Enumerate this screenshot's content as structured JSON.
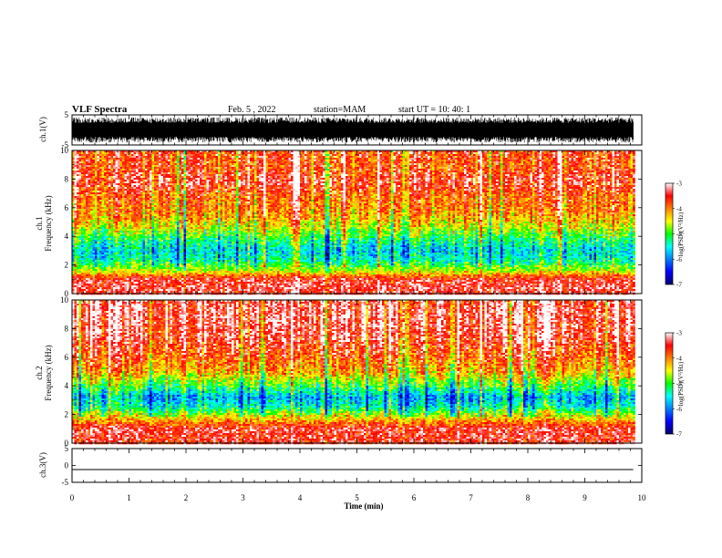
{
  "chart_data": {
    "type": "heatmap",
    "title": "VLF Spectra",
    "date": "Feb. 5  , 2022",
    "station": "station=MAM",
    "start_time": "start  UT  =   10: 40: 1",
    "xlabel": "Time  (min)",
    "x_ticks": [
      "0",
      "1",
      "2",
      "3",
      "4",
      "5",
      "6",
      "7",
      "8",
      "9",
      "10"
    ],
    "xlim": [
      0,
      10
    ],
    "data_end_min": 9.85,
    "panels": [
      {
        "kind": "waveform",
        "ylabel": "ch.1(V)",
        "ylim": [
          -5,
          5
        ],
        "y_ticks": [
          "5",
          "-5"
        ],
        "amplitude_range": [
          -4.2,
          4.2
        ]
      },
      {
        "kind": "spectrogram",
        "ch": "ch.1",
        "ylabel": "Frequency  (kHz)",
        "ylim": [
          0,
          10
        ],
        "y_ticks": [
          "0",
          "2",
          "4",
          "6",
          "8",
          "10"
        ],
        "bands": [
          {
            "f": 0.3,
            "level": -3.4
          },
          {
            "f": 1.0,
            "level": -3.5
          },
          {
            "f": 1.6,
            "level": -4.6
          },
          {
            "f": 2.3,
            "level": -5.4
          },
          {
            "f": 3.0,
            "level": -5.7
          },
          {
            "f": 3.8,
            "level": -5.2
          },
          {
            "f": 4.6,
            "level": -4.6
          },
          {
            "f": 5.6,
            "level": -4.1
          },
          {
            "f": 6.8,
            "level": -3.9
          },
          {
            "f": 7.8,
            "level": -3.5
          },
          {
            "f": 8.8,
            "level": -3.8
          },
          {
            "f": 10.0,
            "level": -3.7
          }
        ]
      },
      {
        "kind": "spectrogram",
        "ch": "ch.2",
        "ylabel": "Frequency  (kHz)",
        "ylim": [
          0,
          10
        ],
        "y_ticks": [
          "0",
          "2",
          "4",
          "6",
          "8",
          "10"
        ],
        "bands": [
          {
            "f": 0.3,
            "level": -3.5
          },
          {
            "f": 1.0,
            "level": -3.4
          },
          {
            "f": 1.8,
            "level": -4.4
          },
          {
            "f": 2.5,
            "level": -5.4
          },
          {
            "f": 3.2,
            "level": -5.8
          },
          {
            "f": 4.0,
            "level": -5.0
          },
          {
            "f": 5.0,
            "level": -4.2
          },
          {
            "f": 6.0,
            "level": -3.8
          },
          {
            "f": 7.5,
            "level": -3.4
          },
          {
            "f": 9.0,
            "level": -3.3
          },
          {
            "f": 10.0,
            "level": -3.4
          }
        ]
      },
      {
        "kind": "waveform",
        "ylabel": "ch.3(V)",
        "ylim": [
          -5,
          5
        ],
        "y_ticks": [
          "5",
          "0",
          "-5"
        ],
        "constant": -1.2
      }
    ],
    "colorbar": {
      "label": "log(PSD)(V²/Hz)",
      "range": [
        -7,
        -3
      ],
      "ticks": [
        "-3",
        "-4",
        "-5",
        "-6",
        "-7"
      ],
      "colors": [
        "#000070",
        "#0000ff",
        "#0080ff",
        "#00ffff",
        "#00ff00",
        "#ffff00",
        "#ff8000",
        "#ff0000",
        "#ffffff"
      ]
    }
  }
}
